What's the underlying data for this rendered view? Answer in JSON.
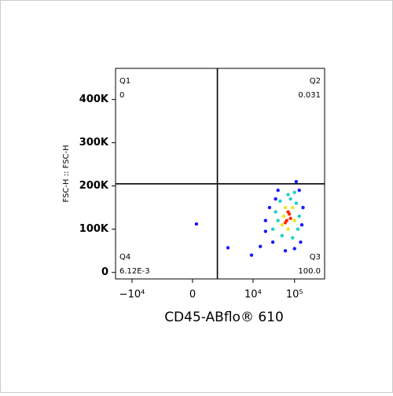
{
  "chart_data": {
    "type": "scatter",
    "xlabel": "CD45-ABflo® 610",
    "ylabel": "FSC-H :: FSC-H",
    "xscale": "biexponential",
    "xlim": [
      -25000,
      530000
    ],
    "ylim": [
      -15000,
      472000
    ],
    "xticks": [
      {
        "value": -10000,
        "label": "−10⁴"
      },
      0,
      {
        "value": 10000,
        "label": "10⁴"
      },
      {
        "value": 100000,
        "label": "10⁵"
      }
    ],
    "yticks": [
      0,
      {
        "value": 100000,
        "label": "100K"
      },
      {
        "value": 200000,
        "label": "200K"
      },
      {
        "value": 300000,
        "label": "300K"
      },
      {
        "value": 400000,
        "label": "400K"
      }
    ],
    "gates": {
      "x": 1300,
      "y": 205000
    },
    "quadrants": [
      {
        "name": "Q1",
        "value": 0
      },
      {
        "name": "Q2",
        "value": 0.031
      },
      {
        "name": "Q3",
        "value": 100,
        "value_label": "100.0"
      },
      {
        "name": "Q4",
        "value": 0.00612,
        "value_label": "6.12E-3"
      }
    ],
    "series": [
      {
        "color": "#1a1aff",
        "x": [
          15000,
          20000,
          25000,
          30000,
          40000,
          130000,
          150000,
          140000,
          100000,
          60000,
          20000,
          35000,
          110000,
          160000,
          2440,
          152,
          9200
        ],
        "y": [
          60000,
          95000,
          150000,
          70000,
          190000,
          190000,
          110000,
          70000,
          55000,
          50000,
          120000,
          170000,
          210000,
          150000,
          57000,
          112000,
          40000
        ]
      },
      {
        "color": "#1fd0c8",
        "x": [
          30000,
          35000,
          45000,
          80000,
          110000,
          120000,
          90000,
          50000,
          40000,
          100000,
          70000,
          130000
        ],
        "y": [
          100000,
          140000,
          165000,
          170000,
          160000,
          100000,
          80000,
          85000,
          120000,
          185000,
          180000,
          130000
        ]
      },
      {
        "color": "#e8e820",
        "x": [
          50000,
          60000,
          90000,
          100000,
          70000,
          55000
        ],
        "y": [
          110000,
          150000,
          150000,
          120000,
          100000,
          130000
        ]
      },
      {
        "color": "#ff2a00",
        "x": [
          65000,
          75000,
          80000,
          70000,
          60000
        ],
        "y": [
          120000,
          135000,
          125000,
          140000,
          115000
        ]
      }
    ]
  }
}
